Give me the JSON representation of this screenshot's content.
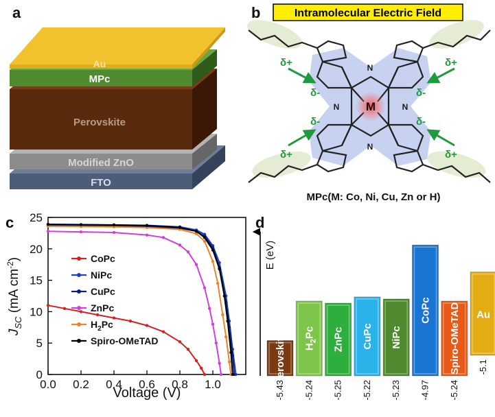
{
  "panel_a": {
    "label": "a",
    "layers": [
      {
        "name": "Au",
        "color": "#f2c12e"
      },
      {
        "name": "MPc",
        "color": "#4f8a2e"
      },
      {
        "name": "Perovskite",
        "color": "#5a2a0d"
      },
      {
        "name": "Modified ZnO",
        "color": "#8c8c8c"
      },
      {
        "name": "FTO",
        "color": "#4c5d78"
      }
    ]
  },
  "panel_b": {
    "label": "b",
    "title": "Intramolecular Electric Field",
    "center_atom": "M",
    "delta_plus": "δ+",
    "delta_minus": "δ-",
    "bridge_n": "N",
    "caption": "MPc(M: Co, Ni, Cu, Zn or H)"
  },
  "chart_data": [
    {
      "type": "line",
      "panel": "c",
      "xlabel": "Voltage (V)",
      "ylabel": "J_SC (mA cm^-2)",
      "xlim": [
        0.0,
        1.2
      ],
      "ylim": [
        0,
        25
      ],
      "xticks": [
        "0.0",
        "0.2",
        "0.4",
        "0.6",
        "0.8",
        "1.0"
      ],
      "yticks": [
        "0",
        "5",
        "10",
        "15",
        "20",
        "25"
      ],
      "legend_position": "center-left",
      "series": [
        {
          "name": "CoPc",
          "color": "#d42020",
          "x": [
            0.0,
            0.1,
            0.2,
            0.3,
            0.4,
            0.5,
            0.6,
            0.7,
            0.8,
            0.85,
            0.9,
            0.93,
            0.95
          ],
          "y": [
            11.0,
            10.5,
            10.0,
            9.5,
            9.0,
            8.5,
            7.8,
            6.8,
            5.2,
            4.0,
            2.2,
            1.0,
            0.0
          ]
        },
        {
          "name": "NiPc",
          "color": "#1f3fbf",
          "x": [
            0.0,
            0.2,
            0.4,
            0.6,
            0.8,
            0.9,
            0.95,
            1.0,
            1.04,
            1.08,
            1.1,
            1.12,
            1.14
          ],
          "y": [
            23.9,
            23.85,
            23.8,
            23.75,
            23.5,
            23.0,
            22.3,
            20.5,
            17.8,
            12.5,
            8.5,
            4.0,
            0.0
          ]
        },
        {
          "name": "CuPc",
          "color": "#0a1f7a",
          "x": [
            0.0,
            0.2,
            0.4,
            0.6,
            0.8,
            0.9,
            0.95,
            1.0,
            1.04,
            1.08,
            1.1,
            1.12,
            1.13
          ],
          "y": [
            23.7,
            23.65,
            23.6,
            23.5,
            23.3,
            22.8,
            22.0,
            20.2,
            17.0,
            11.5,
            7.5,
            3.0,
            0.0
          ]
        },
        {
          "name": "ZnPc",
          "color": "#d23fd6",
          "x": [
            0.0,
            0.2,
            0.4,
            0.6,
            0.7,
            0.8,
            0.85,
            0.9,
            0.95,
            0.98,
            1.0,
            1.02,
            1.04,
            1.05
          ],
          "y": [
            22.8,
            22.7,
            22.6,
            22.2,
            21.8,
            20.6,
            19.5,
            17.5,
            13.8,
            10.5,
            8.0,
            5.0,
            1.8,
            0.0
          ]
        },
        {
          "name": "H2Pc",
          "color": "#e8832a",
          "x": [
            0.0,
            0.2,
            0.4,
            0.6,
            0.8,
            0.9,
            0.95,
            1.0,
            1.03,
            1.06,
            1.08,
            1.1,
            1.11
          ],
          "y": [
            23.6,
            23.55,
            23.5,
            23.4,
            23.1,
            22.4,
            21.2,
            18.0,
            14.5,
            9.5,
            6.0,
            2.0,
            0.0
          ]
        },
        {
          "name": "Spiro-OMeTAD",
          "color": "#000000",
          "x": [
            0.0,
            0.2,
            0.4,
            0.6,
            0.8,
            0.9,
            0.95,
            1.0,
            1.04,
            1.07,
            1.09,
            1.11,
            1.12
          ],
          "y": [
            23.9,
            23.85,
            23.8,
            23.7,
            23.4,
            22.8,
            21.8,
            19.8,
            16.8,
            12.5,
            8.5,
            3.5,
            0.0
          ]
        }
      ]
    },
    {
      "type": "bar",
      "panel": "d",
      "ylabel": "E (eV)",
      "categories": [
        "Perovskite",
        "H2Pc",
        "ZnPc",
        "CuPc",
        "NiPc",
        "CoPc",
        "Spiro-OMeTAD",
        "Au"
      ],
      "values": [
        -5.43,
        -5.24,
        -5.25,
        -5.22,
        -5.23,
        -4.97,
        -5.24,
        -5.1
      ],
      "value_labels": [
        "-5.43",
        "-5.24",
        "-5.25",
        "-5.22",
        "-5.23",
        "-4.97",
        "-5.24",
        "-5.1"
      ],
      "colors": [
        "#7a3a12",
        "#7ec64a",
        "#2eae3c",
        "#2ab3e8",
        "#4f8a2e",
        "#1a74d2",
        "#e85a18",
        "#e2ac12"
      ]
    }
  ],
  "panel_c": {
    "label": "c"
  },
  "panel_d": {
    "label": "d"
  }
}
